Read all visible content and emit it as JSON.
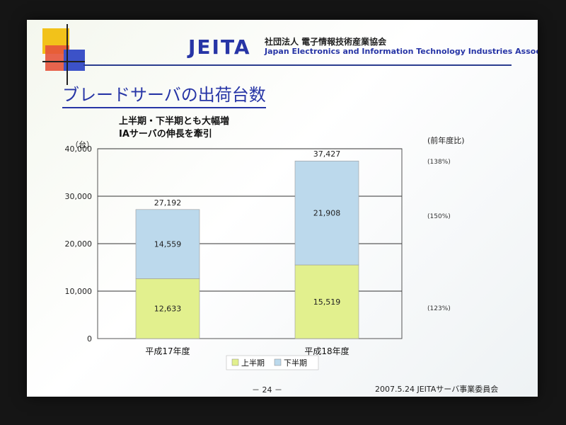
{
  "header": {
    "logo": "JEITA",
    "org_jp": "社団法人 電子情報技術産業協会",
    "org_en": "Japan Electronics and Information Technology Industries Association"
  },
  "slide_title": "ブレードサーバの出荷台数",
  "subtitle_lines": [
    "上半期・下半期とも大幅増",
    "IAサーバの伸長を牽引"
  ],
  "y_unit": "（台）",
  "ratio_header": "(前年度比)",
  "footer": {
    "page": "－ 24 －",
    "text": "2007.5.24 JEITAサーバ事業委員会"
  },
  "chart_data": {
    "type": "bar",
    "stacked": true,
    "categories": [
      "平成17年度",
      "平成18年度"
    ],
    "series": [
      {
        "name": "上半期",
        "values": [
          12633,
          15519
        ],
        "value_labels": [
          "12,633",
          "15,519"
        ],
        "color": "#e2f08e"
      },
      {
        "name": "下半期",
        "values": [
          14559,
          21908
        ],
        "value_labels": [
          "14,559",
          "21,908"
        ],
        "color": "#bcd9ec"
      }
    ],
    "totals": [
      27192,
      37427
    ],
    "total_labels": [
      "27,192",
      "37,427"
    ],
    "ylim": [
      0,
      40000
    ],
    "yticks": [
      0,
      10000,
      20000,
      30000,
      40000
    ],
    "ytick_labels": [
      "0",
      "10,000",
      "20,000",
      "30,000",
      "40,000"
    ],
    "ratios": [
      {
        "label": "(138%)",
        "value": 37427
      },
      {
        "label": "(150%)",
        "value": 26000
      },
      {
        "label": "(123%)",
        "value": 6600
      }
    ],
    "grid": true,
    "legend_position": "bottom"
  }
}
